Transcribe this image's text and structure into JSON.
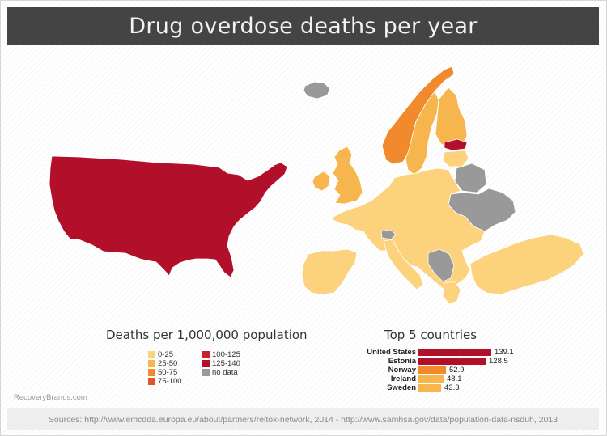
{
  "title": "Drug overdose deaths per year",
  "legend": {
    "title": "Deaths per 1,000,000 population",
    "items": [
      {
        "label": "0-25",
        "color": "#fcd27c"
      },
      {
        "label": "25-50",
        "color": "#f7b54e"
      },
      {
        "label": "50-75",
        "color": "#f08a2c"
      },
      {
        "label": "75-100",
        "color": "#e2542a"
      },
      {
        "label": "100-125",
        "color": "#cc1f26"
      },
      {
        "label": "125-140",
        "color": "#b2102a"
      },
      {
        "label": "no data",
        "color": "#999999"
      }
    ]
  },
  "top5": {
    "title": "Top 5 countries",
    "rows": [
      {
        "country": "United States",
        "value": "139.1",
        "num": 139.1,
        "color": "#b2102a"
      },
      {
        "country": "Estonia",
        "value": "128.5",
        "num": 128.5,
        "color": "#b2102a"
      },
      {
        "country": "Norway",
        "value": "52.9",
        "num": 52.9,
        "color": "#f08a2c"
      },
      {
        "country": "Ireland",
        "value": "48.1",
        "num": 48.1,
        "color": "#f7b54e"
      },
      {
        "country": "Sweden",
        "value": "43.3",
        "num": 43.3,
        "color": "#f7b54e"
      }
    ]
  },
  "regions": [
    {
      "name": "United States",
      "category": "125-140"
    },
    {
      "name": "Estonia",
      "category": "125-140"
    },
    {
      "name": "Norway",
      "category": "50-75"
    },
    {
      "name": "Sweden",
      "category": "25-50"
    },
    {
      "name": "Finland",
      "category": "25-50"
    },
    {
      "name": "Ireland",
      "category": "25-50"
    },
    {
      "name": "United Kingdom",
      "category": "25-50"
    },
    {
      "name": "Iceland",
      "category": "no data"
    },
    {
      "name": "Ukraine",
      "category": "no data"
    },
    {
      "name": "Belarus",
      "category": "no data"
    },
    {
      "name": "Continental Europe",
      "category": "0-25"
    },
    {
      "name": "Turkey",
      "category": "0-25"
    }
  ],
  "brand": "RecoveryBrands.com",
  "sources": "Sources: http://www.emcdda.europa.eu/about/partners/reitox-network, 2014  -  http://www.samhsa.gov/data/population-data-nsduh, 2013"
}
